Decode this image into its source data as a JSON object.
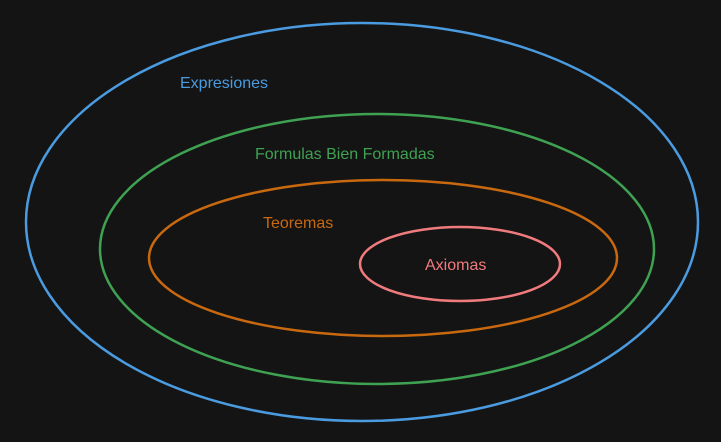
{
  "background": "#141414",
  "sets": [
    {
      "id": "expresiones",
      "label": "Expresiones",
      "color": "#4a9be0"
    },
    {
      "id": "formulas",
      "label": "Formulas Bien Formadas",
      "color": "#3fa152"
    },
    {
      "id": "teoremas",
      "label": "Teoremas",
      "color": "#c9690f"
    },
    {
      "id": "axiomas",
      "label": "Axiomas",
      "color": "#f07b7e"
    }
  ]
}
